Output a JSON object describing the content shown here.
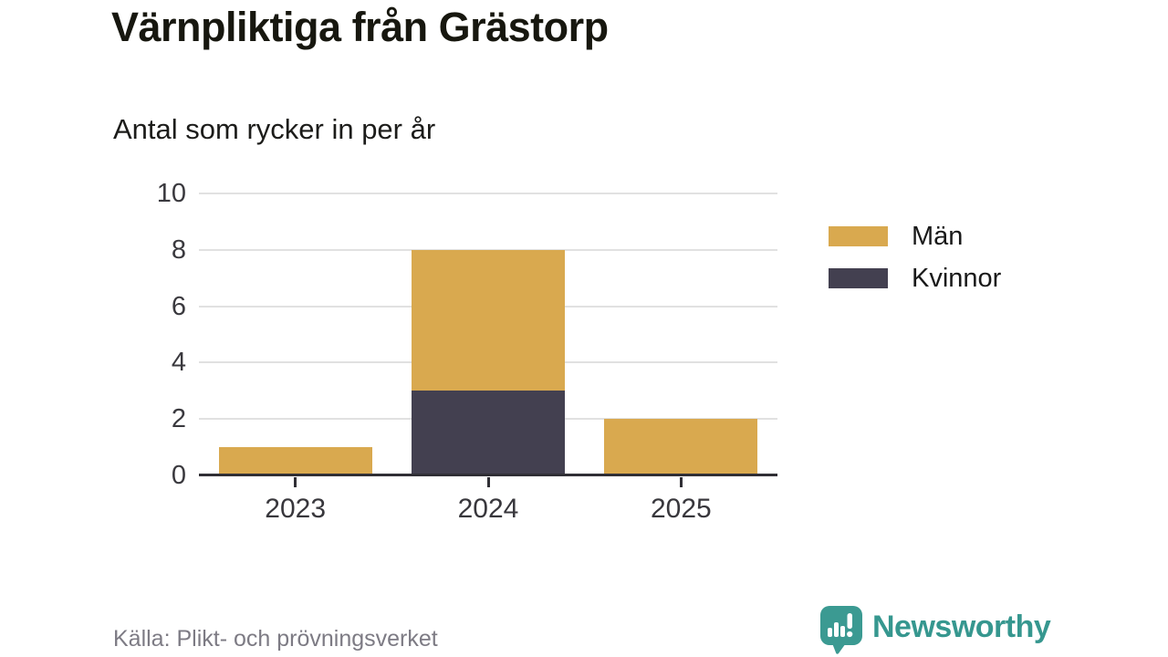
{
  "chart_data": {
    "type": "bar",
    "stacked": true,
    "title": "Värnpliktiga från Grästorp",
    "subtitle": "Antal som rycker in per år",
    "categories": [
      "2023",
      "2024",
      "2025"
    ],
    "series": [
      {
        "name": "Män",
        "color": "#d9a94f",
        "values": [
          1,
          5,
          2
        ]
      },
      {
        "name": "Kvinnor",
        "color": "#434050",
        "values": [
          0,
          3,
          0
        ]
      }
    ],
    "stack_order_bottom_to_top": [
      "Kvinnor",
      "Män"
    ],
    "ylim": [
      0,
      10
    ],
    "yticks": [
      0,
      2,
      4,
      6,
      8,
      10
    ],
    "grid": true,
    "legend_position": "right"
  },
  "footer": {
    "source": "Källa: Plikt- och prövningsverket",
    "brand": "Newsworthy"
  },
  "colors": {
    "men": "#d9a94f",
    "women": "#434050",
    "brand_teal": "#36978f",
    "grid": "#e1e1e1",
    "axis": "#302f35",
    "muted_text": "#7d7b84"
  }
}
